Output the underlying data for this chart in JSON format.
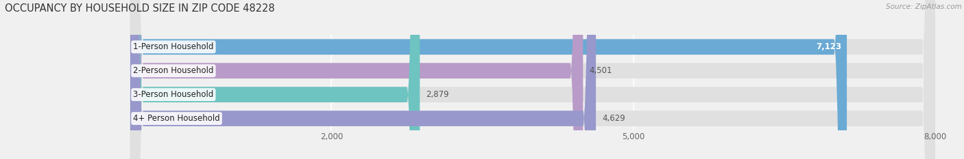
{
  "title": "OCCUPANCY BY HOUSEHOLD SIZE IN ZIP CODE 48228",
  "source": "Source: ZipAtlas.com",
  "categories": [
    "1-Person Household",
    "2-Person Household",
    "3-Person Household",
    "4+ Person Household"
  ],
  "values": [
    7123,
    4501,
    2879,
    4629
  ],
  "bar_colors": [
    "#6aaad4",
    "#b89bc8",
    "#6ec4c0",
    "#9898cc"
  ],
  "label_colors": [
    "#ffffff",
    "#666666",
    "#666666",
    "#666666"
  ],
  "xlim": [
    0,
    8000
  ],
  "xticks": [
    2000,
    5000,
    8000
  ],
  "background_color": "#f0f0f0",
  "bar_bg_color": "#e0e0e0",
  "title_fontsize": 10.5,
  "label_fontsize": 8.5,
  "value_fontsize": 8.5
}
